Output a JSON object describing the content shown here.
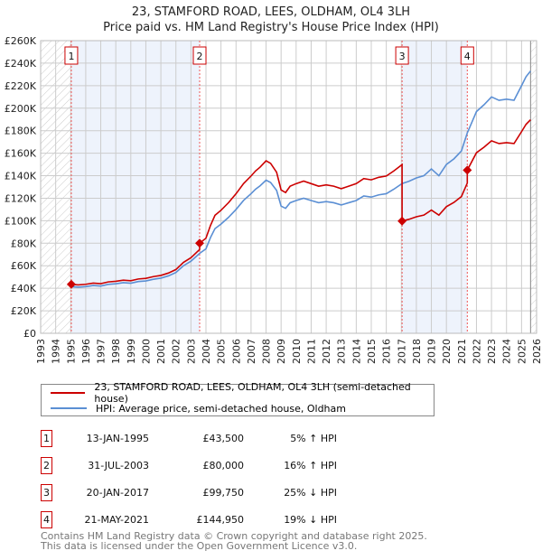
{
  "chart_data": {
    "type": "line",
    "title": "23, STAMFORD ROAD, LEES, OLDHAM, OL4 3LH",
    "subtitle": "Price paid vs. HM Land Registry's House Price Index (HPI)",
    "xlim": [
      1993,
      2026
    ],
    "ylim": [
      0,
      260000
    ],
    "grid": true,
    "x_ticks": [
      "1993",
      "1994",
      "1995",
      "1996",
      "1997",
      "1998",
      "1999",
      "2000",
      "2001",
      "2002",
      "2003",
      "2004",
      "2005",
      "2006",
      "2007",
      "2008",
      "2009",
      "2010",
      "2011",
      "2012",
      "2013",
      "2014",
      "2015",
      "2016",
      "2017",
      "2018",
      "2019",
      "2020",
      "2021",
      "2022",
      "2023",
      "2024",
      "2025",
      "2026"
    ],
    "y_ticks": [
      "£0",
      "£20K",
      "£40K",
      "£60K",
      "£80K",
      "£100K",
      "£120K",
      "£140K",
      "£160K",
      "£180K",
      "£200K",
      "£220K",
      "£240K",
      "£260K"
    ],
    "colors": {
      "property": "#cc0000",
      "hpi": "#5b8fd4",
      "shade": "#eef3fc"
    },
    "legend": [
      "23, STAMFORD ROAD, LEES, OLDHAM, OL4 3LH (semi-detached house)",
      "HPI: Average price, semi-detached house, Oldham"
    ],
    "hpi_series": {
      "x": [
        1995.0,
        1995.5,
        1996,
        1996.5,
        1997,
        1997.5,
        1998,
        1998.5,
        1999,
        1999.5,
        2000,
        2000.5,
        2001,
        2001.5,
        2002,
        2002.5,
        2003,
        2003.58,
        2004,
        2004.3,
        2004.6,
        2005,
        2005.5,
        2006,
        2006.5,
        2007,
        2007.3,
        2007.6,
        2008,
        2008.3,
        2008.7,
        2009,
        2009.3,
        2009.6,
        2010,
        2010.5,
        2011,
        2011.5,
        2012,
        2012.5,
        2013,
        2013.5,
        2014,
        2014.5,
        2015,
        2015.5,
        2016,
        2016.5,
        2017.05,
        2017.5,
        2018,
        2018.5,
        2019,
        2019.5,
        2020,
        2020.5,
        2021,
        2021.39,
        2022,
        2022.5,
        2023,
        2023.5,
        2024,
        2024.5,
        2025,
        2025.3,
        2025.6
      ],
      "y": [
        41500,
        41000,
        41500,
        42500,
        42000,
        43500,
        44000,
        45000,
        44500,
        46000,
        46500,
        48000,
        49000,
        51000,
        54000,
        60000,
        64000,
        71000,
        75000,
        85000,
        93000,
        97000,
        103000,
        110000,
        118000,
        124000,
        128000,
        131000,
        136000,
        134000,
        127000,
        113000,
        111000,
        116000,
        118000,
        120000,
        118000,
        116000,
        117000,
        116000,
        114000,
        116000,
        118000,
        122000,
        121000,
        123000,
        124000,
        128000,
        133000,
        135000,
        138000,
        140000,
        146000,
        140000,
        150000,
        155000,
        162000,
        178000,
        197000,
        203000,
        210000,
        207000,
        208000,
        207000,
        220000,
        228000,
        233000
      ]
    },
    "sales": [
      {
        "n": "1",
        "date": "13-JAN-1995",
        "x": 1995.04,
        "price": 43500,
        "price_label": "£43,500",
        "hpi_diff": "5% ↑ HPI"
      },
      {
        "n": "2",
        "date": "31-JUL-2003",
        "x": 2003.58,
        "price": 80000,
        "price_label": "£80,000",
        "hpi_diff": "16% ↑ HPI"
      },
      {
        "n": "3",
        "date": "20-JAN-2017",
        "x": 2017.05,
        "price": 99750,
        "price_label": "£99,750",
        "hpi_diff": "25% ↓ HPI"
      },
      {
        "n": "4",
        "date": "21-MAY-2021",
        "x": 2021.39,
        "price": 144950,
        "price_label": "£144,950",
        "hpi_diff": "19% ↓ HPI"
      }
    ],
    "hatched_ranges": [
      [
        1993,
        1995
      ],
      [
        2025.6,
        2026
      ]
    ],
    "shaded_ranges": [
      [
        1995.04,
        2003.58
      ],
      [
        2017.05,
        2021.39
      ]
    ]
  },
  "footer": {
    "line1": "Contains HM Land Registry data © Crown copyright and database right 2025.",
    "line2": "This data is licensed under the Open Government Licence v3.0."
  }
}
